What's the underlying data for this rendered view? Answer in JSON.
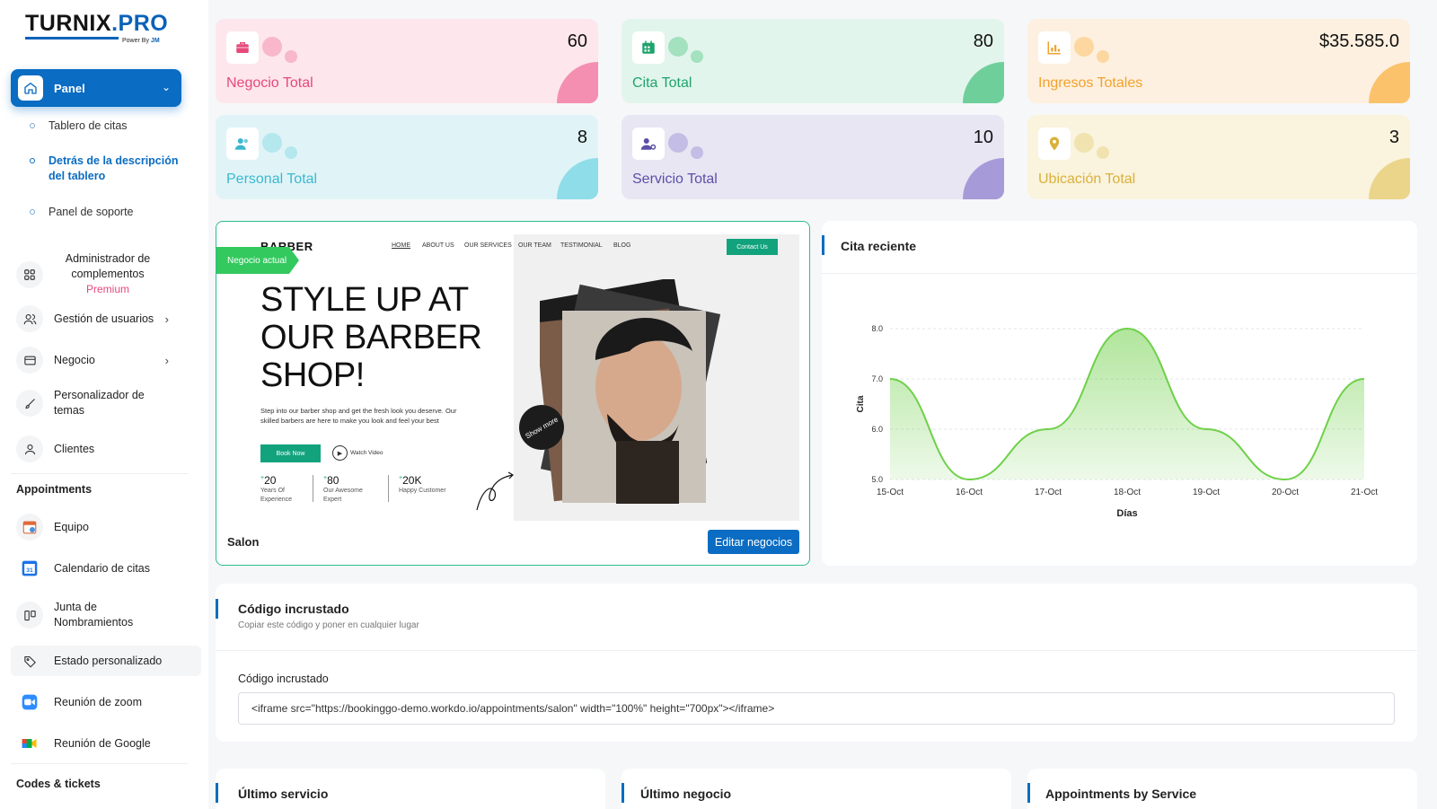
{
  "brand": {
    "name": "TURNIX",
    "dot": ".",
    "suffix": "PRO",
    "tagline_prefix": "Power By",
    "tagline_by": "JM"
  },
  "sidebar": {
    "active": {
      "label": "Panel",
      "icon": "home-icon"
    },
    "submenu": [
      {
        "label": "Tablero de citas"
      },
      {
        "label": "Detrás de la descripción del tablero"
      },
      {
        "label": "Panel de soporte"
      }
    ],
    "addon": {
      "label": "Administrador de complementos",
      "badge": "Premium"
    },
    "items": [
      {
        "label": "Gestión de usuarios",
        "icon": "users-icon"
      },
      {
        "label": "Negocio",
        "icon": "business-icon"
      },
      {
        "label": "Personalizador de temas",
        "icon": "brush-icon"
      },
      {
        "label": "Clientes",
        "icon": "user-icon"
      }
    ],
    "appointments_heading": "Appointments",
    "appointments_items": [
      {
        "label": "Equipo",
        "icon": "calendar-team-icon"
      },
      {
        "label": "Calendario de citas",
        "icon": "calendar-31-icon"
      },
      {
        "label": "Junta de Nombramientos",
        "icon": "board-icon"
      },
      {
        "label": "Estado personalizado",
        "icon": "tag-icon"
      },
      {
        "label": "Reunión de zoom",
        "icon": "zoom-icon"
      },
      {
        "label": "Reunión de Google",
        "icon": "google-meet-icon"
      }
    ],
    "codes_heading": "Codes & tickets"
  },
  "stats": [
    {
      "label": "Negocio Total",
      "value": "60",
      "color": "#e6497a",
      "bg": "#fde6ec",
      "wedge": "#f48fb1",
      "icon": "briefcase-icon"
    },
    {
      "label": "Cita Total",
      "value": "80",
      "color": "#1fa36c",
      "bg": "#e2f5ec",
      "wedge": "#6fcf9b",
      "icon": "calendar-icon"
    },
    {
      "label": "Ingresos Totales",
      "value": "$35.585.0",
      "color": "#f2a22c",
      "bg": "#fdf0e0",
      "wedge": "#fbc26b",
      "icon": "chart-bars-icon"
    },
    {
      "label": "Personal Total",
      "value": "8",
      "color": "#3bb8d0",
      "bg": "#e0f4f7",
      "wedge": "#8fdde8",
      "icon": "people-icon"
    },
    {
      "label": "Servicio Total",
      "value": "10",
      "color": "#5b4fa6",
      "bg": "#e8e6f3",
      "wedge": "#a69bd8",
      "icon": "user-gear-icon"
    },
    {
      "label": "Ubicación Total",
      "value": "3",
      "color": "#d9b13b",
      "bg": "#faf3dd",
      "wedge": "#ead58a",
      "icon": "map-pin-icon"
    }
  ],
  "business": {
    "ribbon": "Negocio actual",
    "name": "Salon",
    "edit_button": "Editar negocios",
    "preview": {
      "logo": "BARBER",
      "nav": [
        "HOME",
        "ABOUT US",
        "OUR SERVICES",
        "OUR TEAM",
        "TESTIMONIAL",
        "BLOG"
      ],
      "contact": "Contact Us",
      "headline_1": "STYLE UP AT",
      "headline_2": "OUR BARBER",
      "headline_3": "SHOP!",
      "desc": "Step into our barber shop and get the fresh look you deserve. Our skilled barbers are here to make you look and feel your best",
      "book": "Book Now",
      "watch": "Watch Video",
      "show_more": "Show more",
      "stats": [
        {
          "n": "20",
          "t": "Years Of Experience"
        },
        {
          "n": "80",
          "t": "Our Awesome Expert"
        },
        {
          "n": "20K",
          "t": "Happy Customer"
        }
      ]
    }
  },
  "chart_card": {
    "title": "Cita reciente"
  },
  "chart_data": {
    "type": "area",
    "categories": [
      "15-Oct",
      "16-Oct",
      "17-Oct",
      "18-Oct",
      "19-Oct",
      "20-Oct",
      "21-Oct"
    ],
    "values": [
      7,
      5,
      6,
      8,
      6,
      5,
      7
    ],
    "xlabel": "Días",
    "ylabel": "Cita",
    "yticks": [
      "5.0",
      "6.0",
      "7.0",
      "8.0"
    ],
    "ylim": [
      5,
      8
    ],
    "color": "#6fd04a",
    "grid": true
  },
  "embed": {
    "title": "Código incrustado",
    "subtitle": "Copiar este código y poner en cualquier lugar",
    "field_label": "Código incrustado",
    "code": "<iframe src=\"https://bookinggo-demo.workdo.io/appointments/salon\" width=\"100%\" height=\"700px\"></iframe>"
  },
  "bottom_cards": [
    {
      "title": "Último servicio"
    },
    {
      "title": "Último negocio"
    },
    {
      "title": "Appointments by Service"
    }
  ]
}
